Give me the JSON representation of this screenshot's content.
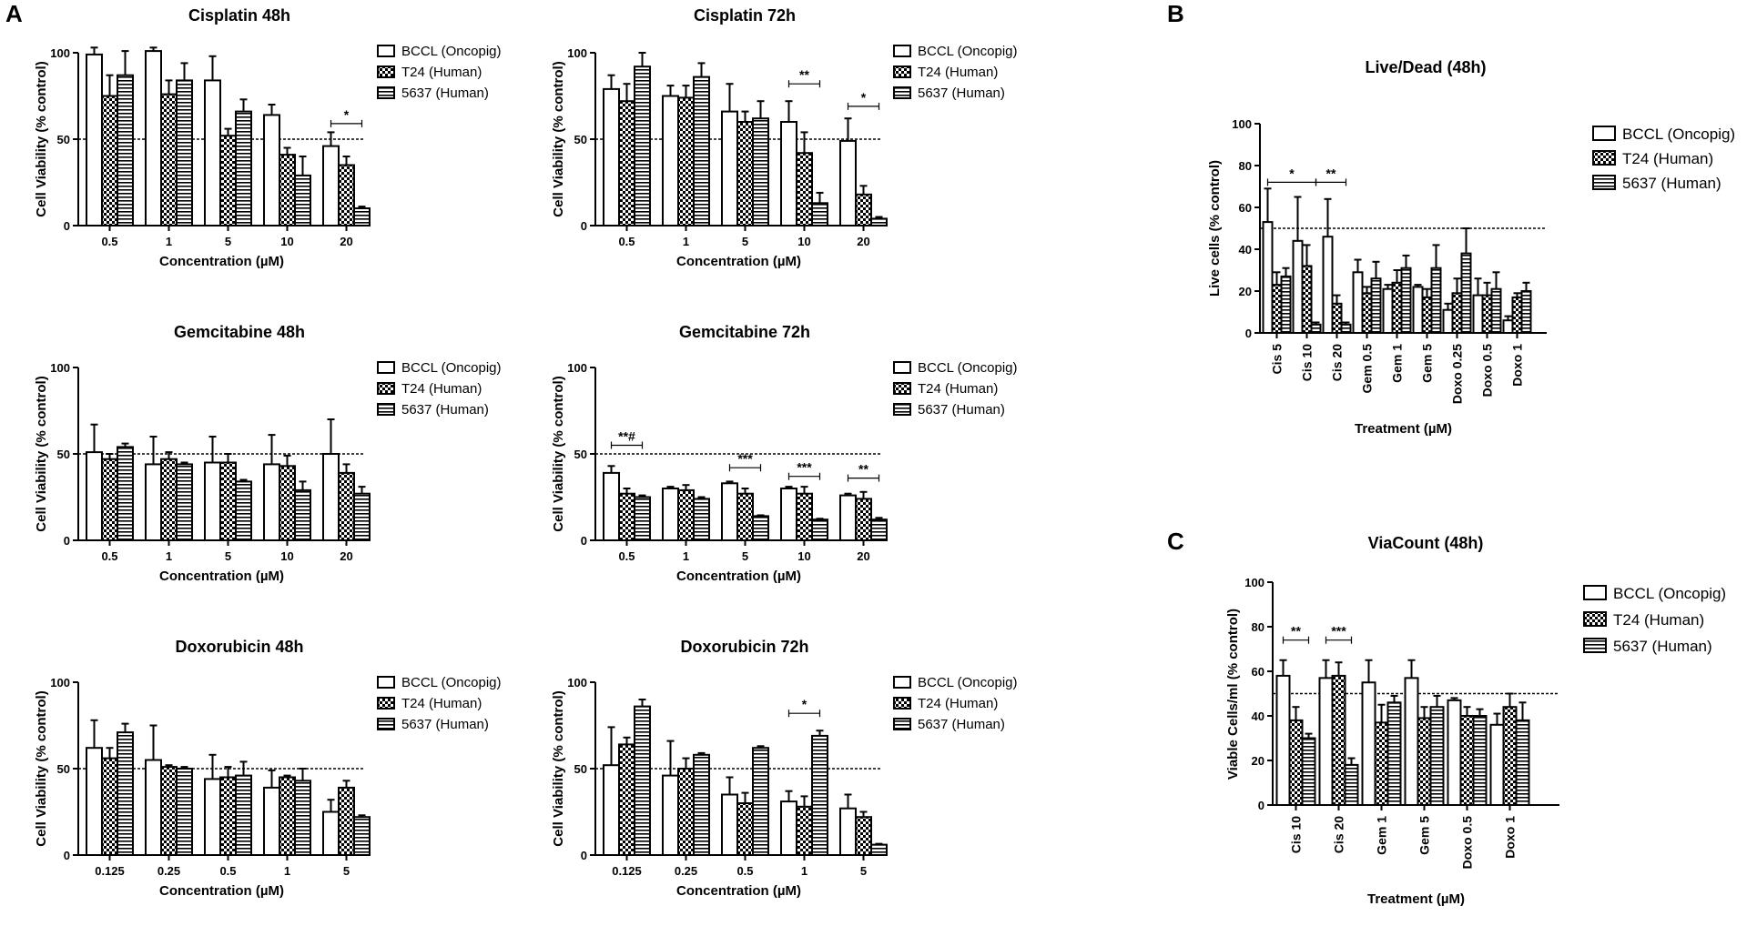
{
  "panel_letters": [
    "A",
    "B",
    "C"
  ],
  "pattern_fills": {
    "bar_a": "white",
    "bar_b": "checkered",
    "bar_c": "horizontal-stripes"
  },
  "colors": {
    "ink": "#000000",
    "background": "#ffffff"
  },
  "chart_data": [
    {
      "id": "cis48",
      "type": "bar",
      "title": "Cisplatin 48h",
      "xlabel": "Concentration (µM)",
      "ylabel": "Cell Viability (% control)",
      "ylim": [
        0,
        100
      ],
      "yticks": [
        0,
        50,
        100
      ],
      "reference_line": 50,
      "categories": [
        "0.5",
        "1",
        "5",
        "10",
        "20"
      ],
      "legend": [
        "BCCL (Oncopig)",
        "T24 (Human)",
        "5637 (Human)"
      ],
      "series": [
        {
          "name": "BCCL (Oncopig)",
          "values": [
            99,
            101,
            84,
            64,
            46
          ],
          "errors": [
            4,
            2,
            14,
            6,
            8
          ]
        },
        {
          "name": "T24 (Human)",
          "values": [
            75,
            76,
            52,
            41,
            35
          ],
          "errors": [
            12,
            8,
            4,
            4,
            5
          ]
        },
        {
          "name": "5637 (Human)",
          "values": [
            87,
            84,
            66,
            29,
            10
          ],
          "errors": [
            14,
            10,
            7,
            11,
            1
          ]
        }
      ],
      "annotations": [
        {
          "label": "*",
          "group": 4,
          "from": 0,
          "to": 2,
          "y": 59
        }
      ]
    },
    {
      "id": "cis72",
      "type": "bar",
      "title": "Cisplatin 72h",
      "xlabel": "Concentration (µM)",
      "ylabel": "Cell Viability (% control)",
      "ylim": [
        0,
        100
      ],
      "yticks": [
        0,
        50,
        100
      ],
      "reference_line": 50,
      "categories": [
        "0.5",
        "1",
        "5",
        "10",
        "20"
      ],
      "legend": [
        "BCCL (Oncopig)",
        "T24 (Human)",
        "5637 (Human)"
      ],
      "series": [
        {
          "name": "BCCL (Oncopig)",
          "values": [
            79,
            75,
            66,
            60,
            49
          ],
          "errors": [
            8,
            6,
            16,
            12,
            13
          ]
        },
        {
          "name": "T24 (Human)",
          "values": [
            72,
            74,
            60,
            42,
            18
          ],
          "errors": [
            10,
            7,
            6,
            12,
            5
          ]
        },
        {
          "name": "5637 (Human)",
          "values": [
            92,
            86,
            62,
            13,
            4
          ],
          "errors": [
            8,
            8,
            10,
            6,
            1
          ]
        }
      ],
      "annotations": [
        {
          "label": "**",
          "group": 3,
          "from": 0,
          "to": 2,
          "y": 82
        },
        {
          "label": "*",
          "group": 4,
          "from": 0,
          "to": 2,
          "y": 69
        }
      ]
    },
    {
      "id": "gem48",
      "type": "bar",
      "title": "Gemcitabine 48h",
      "xlabel": "Concentration (µM)",
      "ylabel": "Cell Viability (% control)",
      "ylim": [
        0,
        100
      ],
      "yticks": [
        0,
        50,
        100
      ],
      "reference_line": 50,
      "categories": [
        "0.5",
        "1",
        "5",
        "10",
        "20"
      ],
      "legend": [
        "BCCL (Oncopig)",
        "T24 (Human)",
        "5637 (Human)"
      ],
      "series": [
        {
          "name": "BCCL (Oncopig)",
          "values": [
            51,
            44,
            45,
            44,
            50
          ],
          "errors": [
            16,
            16,
            15,
            17,
            20
          ]
        },
        {
          "name": "T24 (Human)",
          "values": [
            47,
            47,
            45,
            43,
            39
          ],
          "errors": [
            3,
            4,
            5,
            6,
            5
          ]
        },
        {
          "name": "5637 (Human)",
          "values": [
            54,
            44,
            34,
            29,
            27
          ],
          "errors": [
            2,
            1,
            1,
            5,
            4
          ]
        }
      ],
      "annotations": []
    },
    {
      "id": "gem72",
      "type": "bar",
      "title": "Gemcitabine 72h",
      "xlabel": "Concentration (µM)",
      "ylabel": "Cell Viability (% control)",
      "ylim": [
        0,
        100
      ],
      "yticks": [
        0,
        50,
        100
      ],
      "reference_line": 50,
      "categories": [
        "0.5",
        "1",
        "5",
        "10",
        "20"
      ],
      "legend": [
        "BCCL (Oncopig)",
        "T24 (Human)",
        "5637 (Human)"
      ],
      "series": [
        {
          "name": "BCCL (Oncopig)",
          "values": [
            39,
            30,
            33,
            30,
            26
          ],
          "errors": [
            4,
            1,
            1,
            1,
            1
          ]
        },
        {
          "name": "T24 (Human)",
          "values": [
            27,
            29,
            27,
            27,
            24
          ],
          "errors": [
            3,
            3,
            3,
            4,
            4
          ]
        },
        {
          "name": "5637 (Human)",
          "values": [
            25,
            24,
            14,
            12,
            12
          ],
          "errors": [
            1,
            1,
            0.5,
            0.5,
            1
          ]
        }
      ],
      "annotations": [
        {
          "label": "**#",
          "group": 0,
          "from": 0,
          "to": 2,
          "y": 55
        },
        {
          "label": "***",
          "group": 2,
          "from": 0,
          "to": 2,
          "y": 42
        },
        {
          "label": "***",
          "group": 3,
          "from": 0,
          "to": 2,
          "y": 37
        },
        {
          "label": "**",
          "group": 4,
          "from": 0,
          "to": 2,
          "y": 36
        }
      ]
    },
    {
      "id": "doxo48",
      "type": "bar",
      "title": "Doxorubicin 48h",
      "xlabel": "Concentration (µM)",
      "ylabel": "Cell Viability (% control)",
      "ylim": [
        0,
        100
      ],
      "yticks": [
        0,
        50,
        100
      ],
      "reference_line": 50,
      "categories": [
        "0.125",
        "0.25",
        "0.5",
        "1",
        "5"
      ],
      "legend": [
        "BCCL (Oncopig)",
        "T24 (Human)",
        "5637 (Human)"
      ],
      "series": [
        {
          "name": "BCCL (Oncopig)",
          "values": [
            62,
            55,
            44,
            39,
            25
          ],
          "errors": [
            16,
            20,
            14,
            10,
            7
          ]
        },
        {
          "name": "T24 (Human)",
          "values": [
            56,
            51,
            45,
            45,
            39
          ],
          "errors": [
            6,
            1,
            6,
            1,
            4
          ]
        },
        {
          "name": "5637 (Human)",
          "values": [
            71,
            50,
            46,
            43,
            22
          ],
          "errors": [
            5,
            1,
            8,
            7,
            1
          ]
        }
      ],
      "annotations": []
    },
    {
      "id": "doxo72",
      "type": "bar",
      "title": "Doxorubicin 72h",
      "xlabel": "Concentration (µM)",
      "ylabel": "Cell Viability (% control)",
      "ylim": [
        0,
        100
      ],
      "yticks": [
        0,
        50,
        100
      ],
      "reference_line": 50,
      "categories": [
        "0.125",
        "0.25",
        "0.5",
        "1",
        "5"
      ],
      "legend": [
        "BCCL (Oncopig)",
        "T24 (Human)",
        "5637 (Human)"
      ],
      "series": [
        {
          "name": "BCCL (Oncopig)",
          "values": [
            52,
            46,
            35,
            31,
            27
          ],
          "errors": [
            22,
            20,
            10,
            6,
            8
          ]
        },
        {
          "name": "T24 (Human)",
          "values": [
            64,
            50,
            30,
            28,
            22
          ],
          "errors": [
            4,
            6,
            6,
            6,
            3
          ]
        },
        {
          "name": "5637 (Human)",
          "values": [
            86,
            58,
            62,
            69,
            6
          ],
          "errors": [
            4,
            1,
            1,
            3,
            0.5
          ]
        }
      ],
      "annotations": [
        {
          "label": "*",
          "group": 3,
          "from": 0,
          "to": 2,
          "y": 82
        }
      ]
    },
    {
      "id": "livedead",
      "type": "bar",
      "title": "Live/Dead (48h)",
      "xlabel": "Treatment (µM)",
      "ylabel": "Live cells (% control)",
      "ylim": [
        0,
        100
      ],
      "yticks": [
        0,
        20,
        40,
        60,
        80,
        100
      ],
      "reference_line": 50,
      "categories": [
        "Cis 5",
        "Cis 10",
        "Cis 20",
        "Gem 0.5",
        "Gem 1",
        "Gem 5",
        "Doxo 0.25",
        "Doxo 0.5",
        "Doxo 1"
      ],
      "legend": [
        "BCCL (Oncopig)",
        "T24 (Human)",
        "5637 (Human)"
      ],
      "series": [
        {
          "name": "BCCL (Oncopig)",
          "values": [
            53,
            44,
            46,
            29,
            21,
            22,
            11,
            18,
            6
          ],
          "errors": [
            16,
            21,
            18,
            6,
            2,
            1,
            3,
            8,
            2
          ]
        },
        {
          "name": "T24 (Human)",
          "values": [
            23,
            32,
            14,
            19,
            24,
            17,
            19,
            18,
            17
          ],
          "errors": [
            6,
            10,
            4,
            3,
            6,
            4,
            7,
            6,
            2
          ]
        },
        {
          "name": "5637 (Human)",
          "values": [
            27,
            4,
            4,
            26,
            31,
            31,
            38,
            21,
            20
          ],
          "errors": [
            4,
            1,
            1,
            8,
            6,
            11,
            12,
            8,
            4
          ]
        }
      ],
      "annotations": [
        {
          "label": "*",
          "group": 0,
          "from": 0,
          "group_to": 1,
          "to": 2,
          "y": 72
        },
        {
          "label": "**",
          "group": 1,
          "from": 2,
          "group_to": 2,
          "to": 2,
          "y": 72
        }
      ]
    },
    {
      "id": "viacount",
      "type": "bar",
      "title": "ViaCount (48h)",
      "xlabel": "Treatment (µM)",
      "ylabel": "Viable Cells/ml (% control)",
      "ylim": [
        0,
        100
      ],
      "yticks": [
        0,
        20,
        40,
        60,
        80,
        100
      ],
      "reference_line": 50,
      "categories": [
        "Cis 10",
        "Cis 20",
        "Gem 1",
        "Gem 5",
        "Doxo 0.5",
        "Doxo 1"
      ],
      "legend": [
        "BCCL (Oncopig)",
        "T24 (Human)",
        "5637 (Human)"
      ],
      "series": [
        {
          "name": "BCCL (Oncopig)",
          "values": [
            58,
            57,
            55,
            57,
            47,
            36
          ],
          "errors": [
            7,
            8,
            10,
            8,
            1,
            5
          ]
        },
        {
          "name": "T24 (Human)",
          "values": [
            38,
            58,
            37,
            39,
            40,
            44
          ],
          "errors": [
            6,
            6,
            8,
            5,
            4,
            6
          ]
        },
        {
          "name": "5637 (Human)",
          "values": [
            30,
            18,
            46,
            44,
            40,
            38
          ],
          "errors": [
            2,
            3,
            3,
            5,
            3,
            8
          ]
        }
      ],
      "annotations": [
        {
          "label": "**",
          "group": 0,
          "from": 0,
          "to": 2,
          "y": 74
        },
        {
          "label": "***",
          "group": 1,
          "from": 0,
          "to": 2,
          "y": 74
        }
      ]
    }
  ]
}
